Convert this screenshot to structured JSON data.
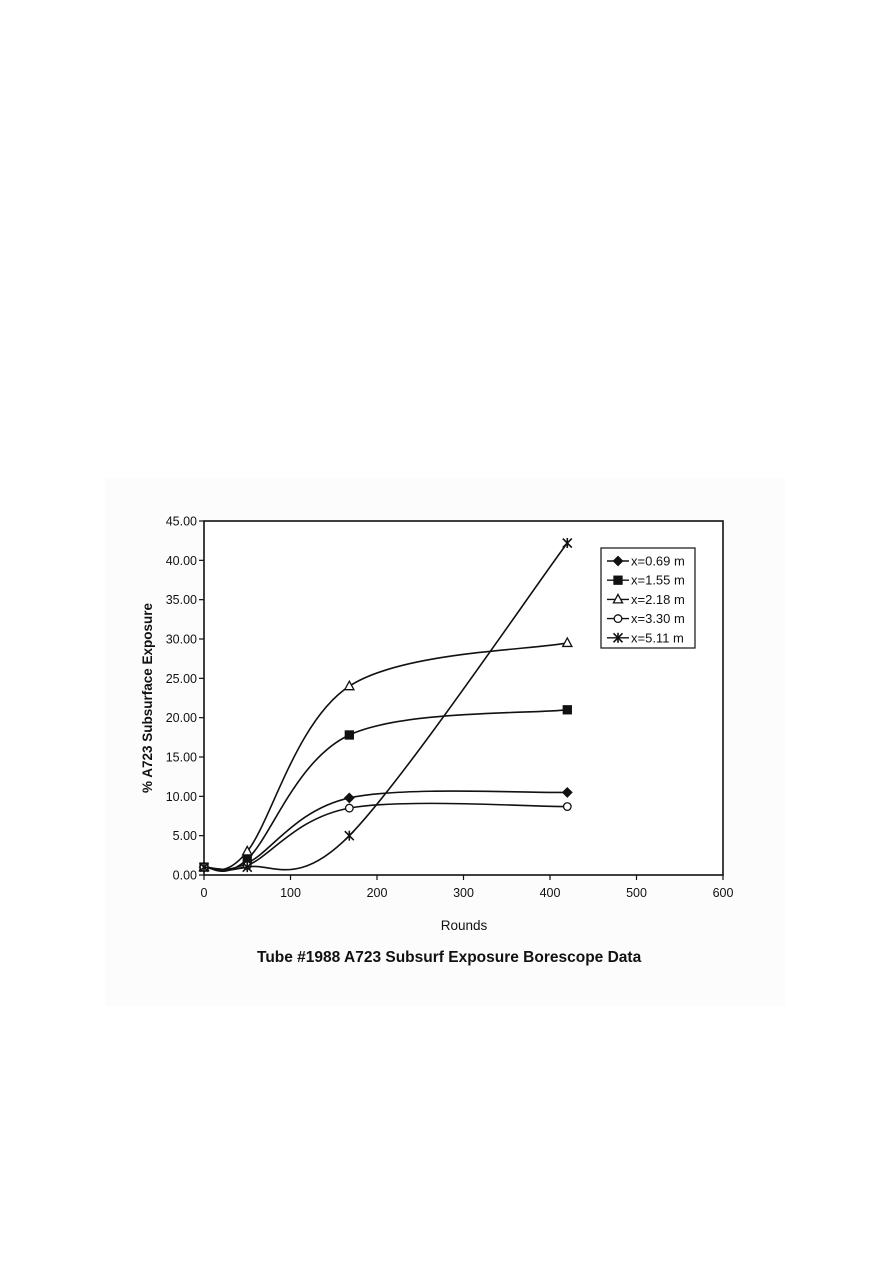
{
  "chart_data": {
    "type": "line",
    "title": "Tube #1988 A723 Subsurf Exposure Borescope Data",
    "xlabel": "Rounds",
    "ylabel": "% A723 Subsurface Exposure",
    "xlim": [
      0,
      600
    ],
    "ylim": [
      0,
      45
    ],
    "x_ticks": [
      "0",
      "100",
      "200",
      "300",
      "400",
      "500",
      "600"
    ],
    "y_ticks": [
      "0.00",
      "5.00",
      "10.00",
      "15.00",
      "20.00",
      "25.00",
      "30.00",
      "35.00",
      "40.00",
      "45.00"
    ],
    "grid": false,
    "legend_position": "top-right",
    "smoothed": true,
    "series": [
      {
        "name": "x=0.69 m",
        "marker": "filled-diamond",
        "color": "#111111",
        "x": [
          0,
          50,
          168,
          420
        ],
        "y": [
          1.0,
          1.5,
          9.8,
          10.5
        ]
      },
      {
        "name": "x=1.55 m",
        "marker": "filled-square",
        "color": "#111111",
        "x": [
          0,
          50,
          168,
          420
        ],
        "y": [
          1.0,
          2.0,
          17.8,
          21.0
        ]
      },
      {
        "name": "x=2.18 m",
        "marker": "open-triangle",
        "color": "#111111",
        "x": [
          0,
          50,
          168,
          420
        ],
        "y": [
          1.0,
          3.0,
          24.0,
          29.5
        ]
      },
      {
        "name": "x=3.30 m",
        "marker": "open-circle",
        "color": "#111111",
        "x": [
          0,
          50,
          168,
          420
        ],
        "y": [
          1.0,
          1.2,
          8.5,
          8.7
        ]
      },
      {
        "name": "x=5.11 m",
        "marker": "star",
        "color": "#111111",
        "x": [
          0,
          50,
          168,
          420
        ],
        "y": [
          1.0,
          1.0,
          5.0,
          42.2
        ]
      }
    ]
  }
}
